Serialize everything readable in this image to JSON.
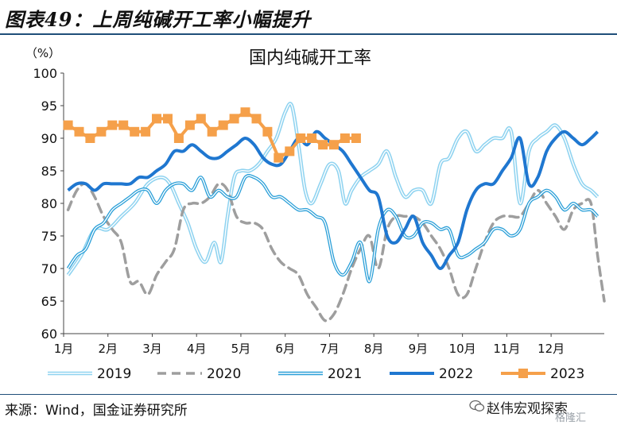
{
  "header": {
    "title": "图表49：上周纯碱开工率小幅提升"
  },
  "source": "来源：Wind，国金证券研究所",
  "watermark": {
    "main": "赵伟宏观探索",
    "sub": "格隆汇"
  },
  "chart_data": {
    "type": "line",
    "title": "国内纯碱开工率",
    "unit_label": "（%）",
    "x_categories": [
      "1月",
      "2月",
      "3月",
      "4月",
      "5月",
      "6月",
      "7月",
      "8月",
      "9月",
      "10月",
      "11月",
      "12月"
    ],
    "xlim": [
      0,
      12.2
    ],
    "ylim": [
      60,
      100
    ],
    "yticks": [
      60,
      65,
      70,
      75,
      80,
      85,
      90,
      95,
      100
    ],
    "series": [
      {
        "name": "2019",
        "style": "double-light",
        "color": "#8fd3f0",
        "x": [
          0.1,
          0.4,
          0.7,
          1.0,
          1.3,
          1.6,
          1.9,
          2.2,
          2.4,
          2.6,
          2.8,
          3.0,
          3.2,
          3.4,
          3.55,
          3.7,
          3.85,
          4.0,
          4.2,
          4.4,
          4.6,
          4.8,
          5.0,
          5.15,
          5.3,
          5.45,
          5.6,
          5.8,
          6.0,
          6.2,
          6.35,
          6.5,
          6.7,
          6.9,
          7.1,
          7.3,
          7.5,
          7.7,
          7.9,
          8.1,
          8.3,
          8.5,
          8.7,
          8.9,
          9.1,
          9.3,
          9.5,
          9.7,
          9.9,
          10.1,
          10.3,
          10.5,
          10.7,
          10.9,
          11.1,
          11.3,
          11.5,
          11.7,
          11.9,
          12.05
        ],
        "y": [
          69,
          72,
          76,
          76,
          78,
          80,
          83,
          84,
          83,
          80,
          77,
          73,
          71,
          74,
          71,
          78,
          84,
          85,
          85,
          86,
          88,
          90,
          94,
          95,
          89,
          82,
          80,
          83,
          86,
          85,
          80,
          82,
          84,
          85,
          86,
          88,
          84,
          81,
          82,
          82,
          80,
          86,
          87,
          90,
          91,
          88,
          89,
          90,
          90,
          91,
          80,
          88,
          90,
          91,
          92,
          90,
          86,
          83,
          82,
          81
        ]
      },
      {
        "name": "2020",
        "style": "dashed",
        "color": "#9e9e9e",
        "x": [
          0.1,
          0.3,
          0.5,
          0.7,
          0.9,
          1.1,
          1.3,
          1.5,
          1.7,
          1.9,
          2.1,
          2.3,
          2.5,
          2.7,
          2.9,
          3.1,
          3.3,
          3.5,
          3.7,
          3.9,
          4.1,
          4.3,
          4.5,
          4.7,
          4.9,
          5.1,
          5.3,
          5.5,
          5.7,
          5.9,
          6.1,
          6.3,
          6.5,
          6.7,
          6.9,
          7.1,
          7.3,
          7.5,
          7.7,
          7.9,
          8.1,
          8.3,
          8.5,
          8.7,
          8.9,
          9.1,
          9.3,
          9.5,
          9.7,
          9.9,
          10.1,
          10.3,
          10.5,
          10.7,
          10.9,
          11.1,
          11.3,
          11.5,
          11.7,
          11.9,
          12.05,
          12.2
        ],
        "y": [
          79,
          82,
          83,
          81,
          78,
          76,
          74,
          68,
          68,
          66,
          69,
          71,
          73,
          79,
          80,
          80,
          81,
          83,
          82,
          78,
          77,
          77,
          76,
          73,
          71,
          70,
          69,
          66,
          64,
          62,
          63,
          66,
          70,
          73,
          75,
          70,
          76,
          78,
          78,
          78,
          77,
          75,
          73,
          70,
          66,
          66,
          70,
          74,
          77,
          78,
          78,
          78,
          80,
          82,
          80,
          78,
          76,
          79,
          80,
          80,
          72,
          65
        ]
      },
      {
        "name": "2021",
        "style": "double-medium",
        "color": "#2a9fd8",
        "x": [
          0.1,
          0.3,
          0.5,
          0.7,
          0.9,
          1.1,
          1.3,
          1.5,
          1.7,
          1.9,
          2.1,
          2.3,
          2.5,
          2.7,
          2.9,
          3.1,
          3.3,
          3.5,
          3.7,
          3.9,
          4.1,
          4.3,
          4.5,
          4.7,
          4.9,
          5.1,
          5.3,
          5.5,
          5.7,
          5.9,
          6.1,
          6.3,
          6.5,
          6.7,
          6.9,
          7.1,
          7.3,
          7.5,
          7.7,
          7.9,
          8.1,
          8.3,
          8.5,
          8.7,
          8.9,
          9.1,
          9.3,
          9.5,
          9.7,
          9.9,
          10.1,
          10.3,
          10.5,
          10.7,
          10.9,
          11.1,
          11.3,
          11.5,
          11.7,
          11.9,
          12.05
        ],
        "y": [
          70,
          72,
          73,
          76,
          77,
          79,
          80,
          81,
          82,
          82,
          80,
          82,
          83,
          83,
          82,
          84,
          81,
          82,
          81,
          81,
          84,
          84,
          83,
          81,
          81,
          80,
          79,
          79,
          78,
          77,
          71,
          69,
          71,
          74,
          68,
          76,
          79,
          78,
          75,
          75,
          77,
          77,
          76,
          76,
          72,
          72,
          73,
          74,
          76,
          76,
          75,
          76,
          80,
          81,
          82,
          81,
          79,
          80,
          79,
          79,
          78
        ]
      },
      {
        "name": "2022",
        "style": "solid-bold",
        "color": "#1f77d0",
        "x": [
          0.1,
          0.3,
          0.5,
          0.7,
          0.9,
          1.1,
          1.3,
          1.5,
          1.7,
          1.9,
          2.1,
          2.3,
          2.5,
          2.7,
          2.9,
          3.1,
          3.3,
          3.5,
          3.7,
          3.9,
          4.1,
          4.3,
          4.5,
          4.7,
          4.9,
          5.1,
          5.3,
          5.5,
          5.7,
          5.9,
          6.1,
          6.3,
          6.5,
          6.7,
          6.9,
          7.1,
          7.3,
          7.5,
          7.7,
          7.9,
          8.1,
          8.3,
          8.5,
          8.7,
          8.9,
          9.1,
          9.3,
          9.5,
          9.7,
          9.9,
          10.1,
          10.3,
          10.5,
          10.7,
          10.9,
          11.1,
          11.3,
          11.5,
          11.7,
          11.9,
          12.05
        ],
        "y": [
          82,
          83,
          83,
          82,
          83,
          83,
          83,
          83,
          84,
          84,
          85,
          86,
          88,
          88,
          89,
          88,
          87,
          87,
          88,
          89,
          90,
          89,
          87,
          86,
          86,
          88,
          90,
          89,
          91,
          90,
          89,
          88,
          86,
          84,
          82,
          81,
          75,
          74,
          76,
          78,
          74,
          72,
          70,
          72,
          74,
          79,
          82,
          83,
          83,
          85,
          87,
          90,
          83,
          84,
          88,
          90,
          91,
          90,
          89,
          90,
          91
        ]
      },
      {
        "name": "2023",
        "style": "marker-square",
        "color": "#f5a04a",
        "x": [
          0.1,
          0.35,
          0.6,
          0.85,
          1.1,
          1.35,
          1.6,
          1.85,
          2.1,
          2.35,
          2.6,
          2.85,
          3.1,
          3.35,
          3.6,
          3.85,
          4.1,
          4.35,
          4.6,
          4.85,
          5.1,
          5.35,
          5.6,
          5.85,
          6.1,
          6.35,
          6.6
        ],
        "y": [
          92,
          91,
          90,
          91,
          92,
          92,
          91,
          91,
          93,
          93,
          90,
          92,
          93,
          91,
          92,
          93,
          94,
          93,
          91,
          87,
          88,
          90,
          90,
          89,
          89,
          90,
          90
        ]
      }
    ]
  }
}
